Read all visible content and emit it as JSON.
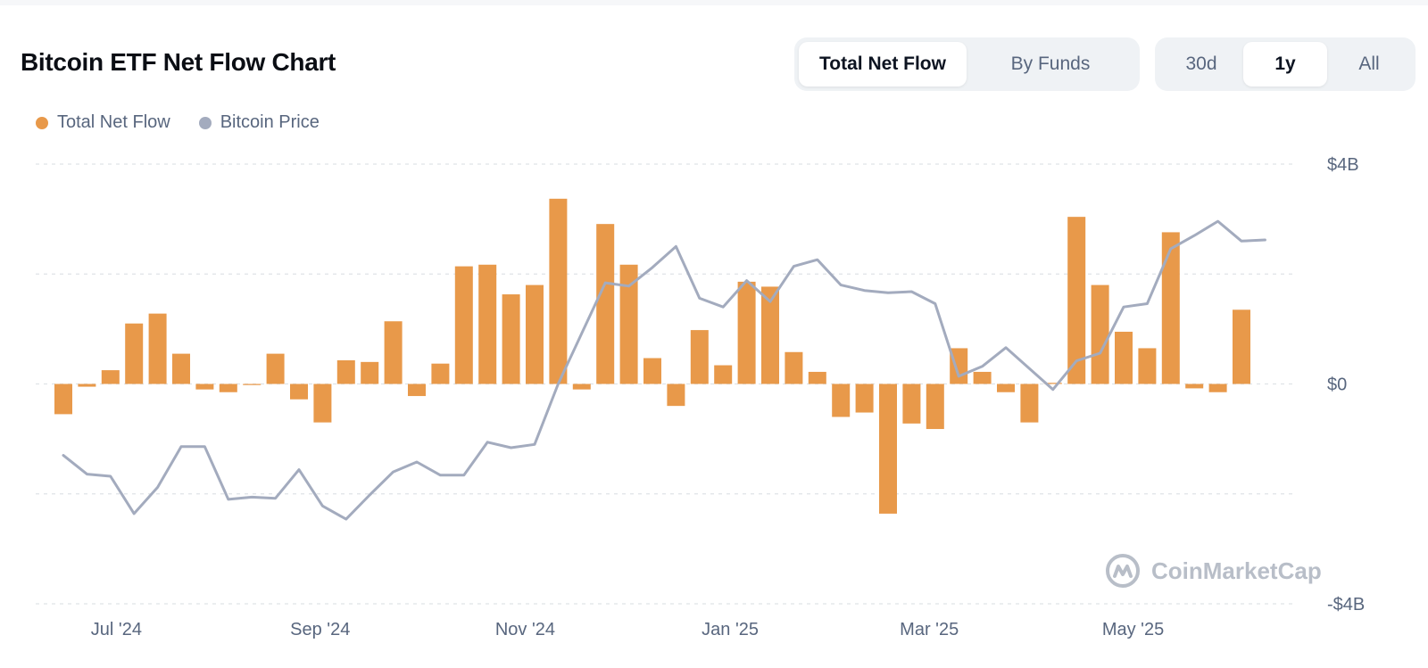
{
  "title": "Bitcoin ETF Net Flow Chart",
  "view_toggle": [
    {
      "label": "Total Net Flow",
      "active": true
    },
    {
      "label": "By Funds",
      "active": false
    }
  ],
  "range_toggle": [
    {
      "label": "30d",
      "active": false
    },
    {
      "label": "1y",
      "active": true
    },
    {
      "label": "All",
      "active": false
    }
  ],
  "watermark": "CoinMarketCap",
  "colors": {
    "net_flow": "#e8994a",
    "price": "#a3abbe",
    "grid": "#dfe3e8",
    "axis_text": "#58667e"
  },
  "chart_data": {
    "type": "bar",
    "title": "Bitcoin ETF Net Flow Chart",
    "legend": [
      {
        "name": "Total Net Flow",
        "color": "#e8994a",
        "icon": "dot"
      },
      {
        "name": "Bitcoin Price",
        "color": "#a3abbe",
        "icon": "dot"
      }
    ],
    "legend_position": "top-left",
    "grid": true,
    "y_axis": {
      "side": "right",
      "ticks": [
        "$4B",
        "$0",
        "-$4B"
      ],
      "tick_values": [
        4,
        0,
        -4
      ],
      "ylim": [
        -4,
        4
      ],
      "unit": "billion USD"
    },
    "x_axis": {
      "ticks": [
        "Jul '24",
        "Sep '24",
        "Nov '24",
        "Jan '25",
        "Mar '25",
        "May '25"
      ],
      "tick_positions": [
        2.25,
        10.9,
        19.6,
        28.3,
        36.75,
        45.4
      ]
    },
    "series": [
      {
        "name": "Total Net Flow",
        "type": "bar",
        "values": [
          -0.55,
          -0.05,
          0.25,
          1.1,
          1.28,
          0.55,
          -0.1,
          -0.15,
          -0.02,
          0.55,
          -0.28,
          -0.7,
          0.43,
          0.4,
          1.14,
          -0.22,
          0.37,
          2.14,
          2.17,
          1.63,
          1.8,
          3.37,
          -0.1,
          2.91,
          2.17,
          0.47,
          -0.4,
          0.98,
          0.34,
          1.86,
          1.77,
          0.58,
          0.22,
          -0.6,
          -0.52,
          -2.36,
          -0.72,
          -0.82,
          0.65,
          0.22,
          -0.15,
          -0.7,
          0.02,
          3.04,
          1.8,
          0.95,
          0.65,
          2.76,
          -0.08,
          -0.15,
          1.35
        ]
      },
      {
        "name": "Bitcoin Price",
        "type": "line",
        "points": [
          [
            0,
            -1.3
          ],
          [
            1,
            -1.64
          ],
          [
            2,
            -1.68
          ],
          [
            3,
            -2.36
          ],
          [
            4,
            -1.88
          ],
          [
            5,
            -1.14
          ],
          [
            6,
            -1.14
          ],
          [
            7,
            -2.1
          ],
          [
            8,
            -2.06
          ],
          [
            9,
            -2.08
          ],
          [
            10,
            -1.56
          ],
          [
            11,
            -2.22
          ],
          [
            12,
            -2.46
          ],
          [
            13,
            -2.02
          ],
          [
            14,
            -1.6
          ],
          [
            15,
            -1.42
          ],
          [
            16,
            -1.66
          ],
          [
            17,
            -1.66
          ],
          [
            18,
            -1.06
          ],
          [
            19,
            -1.16
          ],
          [
            20,
            -1.1
          ],
          [
            21,
            0
          ],
          [
            22,
            0.92
          ],
          [
            23,
            1.84
          ],
          [
            24,
            1.78
          ],
          [
            25,
            2.12
          ],
          [
            26,
            2.5
          ],
          [
            27,
            1.56
          ],
          [
            28,
            1.4
          ],
          [
            29,
            1.88
          ],
          [
            30,
            1.5
          ],
          [
            31,
            2.14
          ],
          [
            32,
            2.26
          ],
          [
            33,
            1.8
          ],
          [
            34,
            1.7
          ],
          [
            35,
            1.66
          ],
          [
            36,
            1.68
          ],
          [
            37,
            1.46
          ],
          [
            38,
            0.14
          ],
          [
            39,
            0.32
          ],
          [
            40,
            0.66
          ],
          [
            41,
            0.28
          ],
          [
            42,
            -0.1
          ],
          [
            43,
            0.42
          ],
          [
            44,
            0.56
          ],
          [
            45,
            1.4
          ],
          [
            46,
            1.46
          ],
          [
            47,
            2.46
          ],
          [
            48,
            2.7
          ],
          [
            49,
            2.96
          ],
          [
            50,
            2.6
          ],
          [
            51,
            2.62
          ]
        ]
      }
    ]
  }
}
